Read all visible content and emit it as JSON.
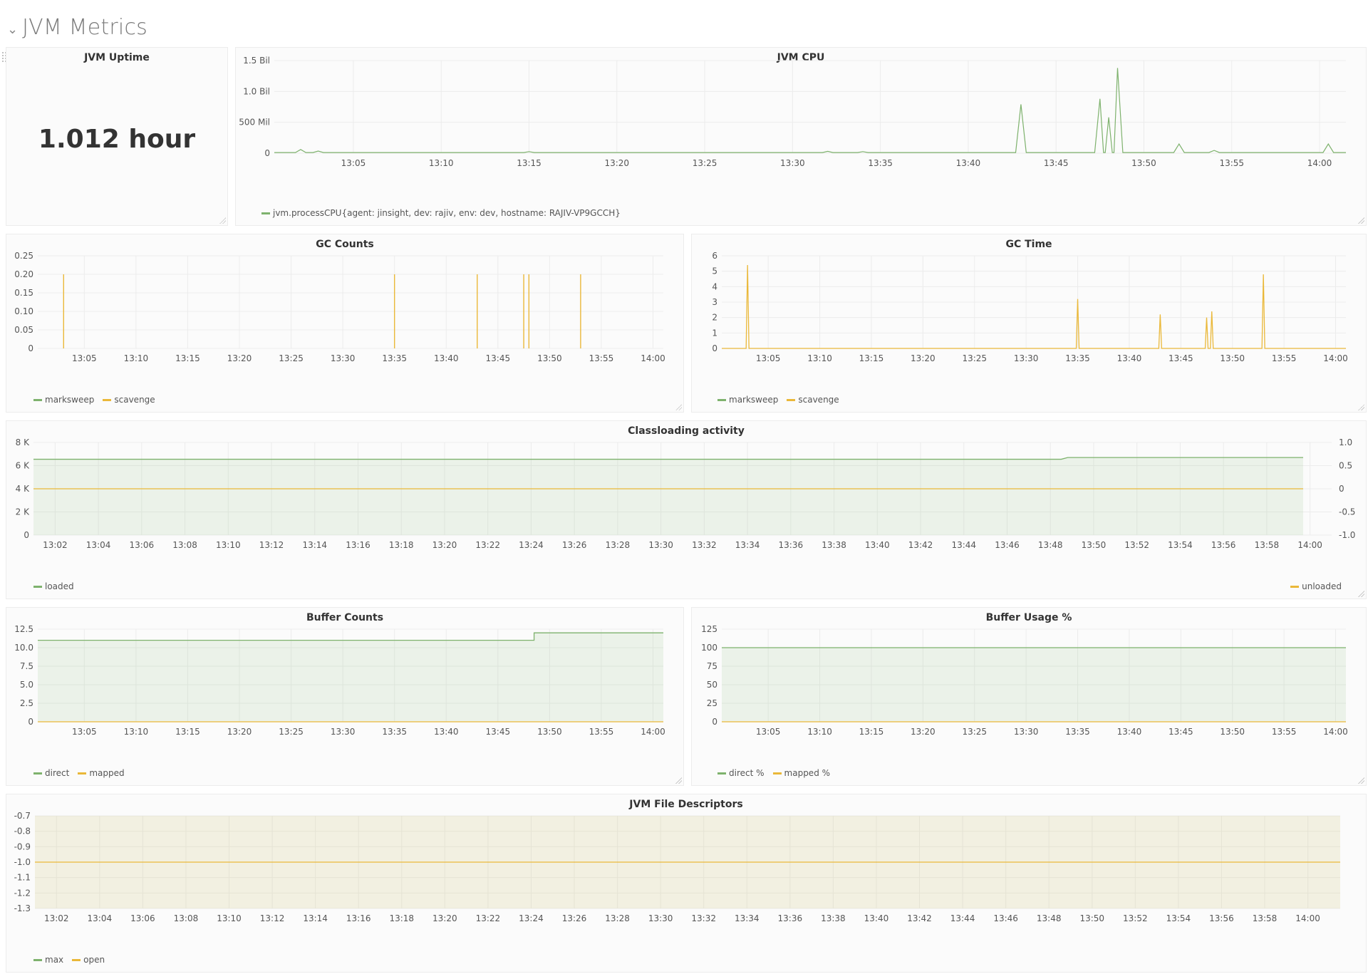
{
  "row": {
    "title": "JVM Metrics",
    "collapse_icon": "chevron-down-icon"
  },
  "colors": {
    "green": "#7eb26d",
    "yellow": "#eab839",
    "grid": "#ececec",
    "fill_green": "rgba(126,178,109,0.12)",
    "fill_yellow": "rgba(234,184,57,0.12)"
  },
  "panels": {
    "uptime": {
      "title": "JVM Uptime",
      "value": "1.012 hour"
    },
    "cpu": {
      "title": "JVM CPU",
      "legend": [
        {
          "name": "jvm.processCPU{agent: jinsight, dev: rajiv, env: dev, hostname: RAJIV-VP9GCCH}",
          "color": "#7eb26d"
        }
      ]
    },
    "gc_counts": {
      "title": "GC Counts",
      "legend": [
        {
          "name": "marksweep",
          "color": "#7eb26d"
        },
        {
          "name": "scavenge",
          "color": "#eab839"
        }
      ]
    },
    "gc_time": {
      "title": "GC Time",
      "legend": [
        {
          "name": "marksweep",
          "color": "#7eb26d"
        },
        {
          "name": "scavenge",
          "color": "#eab839"
        }
      ]
    },
    "classloading": {
      "title": "Classloading activity",
      "legend_left": [
        {
          "name": "loaded",
          "color": "#7eb26d"
        }
      ],
      "legend_right": [
        {
          "name": "unloaded",
          "color": "#eab839"
        }
      ]
    },
    "buffer_counts": {
      "title": "Buffer Counts",
      "legend": [
        {
          "name": "direct",
          "color": "#7eb26d"
        },
        {
          "name": "mapped",
          "color": "#eab839"
        }
      ]
    },
    "buffer_usage": {
      "title": "Buffer Usage %",
      "legend": [
        {
          "name": "direct %",
          "color": "#7eb26d"
        },
        {
          "name": "mapped %",
          "color": "#eab839"
        }
      ]
    },
    "file_desc": {
      "title": "JVM File Descriptors",
      "legend": [
        {
          "name": "max",
          "color": "#7eb26d"
        },
        {
          "name": "open",
          "color": "#eab839"
        }
      ]
    }
  },
  "chart_data": [
    {
      "id": "cpu",
      "type": "line",
      "x_ticks": [
        "13:05",
        "13:10",
        "13:15",
        "13:20",
        "13:25",
        "13:30",
        "13:35",
        "13:40",
        "13:45",
        "13:50",
        "13:55",
        "14:00"
      ],
      "y_ticks": [
        "1.5 Bil",
        "1.0 Bil",
        "500 Mil",
        "0"
      ],
      "ylim": [
        0,
        1500000000
      ],
      "series": [
        {
          "name": "jvm.processCPU{agent: jinsight, dev: rajiv, env: dev, hostname: RAJIV-VP9GCCH}",
          "baseline": 10000000,
          "spikes": [
            [
              "13:02",
              60000000
            ],
            [
              "13:03",
              35000000
            ],
            [
              "13:15",
              25000000
            ],
            [
              "13:32",
              30000000
            ],
            [
              "13:34",
              25000000
            ],
            [
              "13:43",
              790000000
            ],
            [
              "13:47.5",
              880000000
            ],
            [
              "13:48",
              580000000
            ],
            [
              "13:48.5",
              1380000000
            ],
            [
              "13:52",
              150000000
            ],
            [
              "13:54",
              45000000
            ],
            [
              "14:00.5",
              150000000
            ]
          ]
        }
      ]
    },
    {
      "id": "gc_counts",
      "type": "bar",
      "x_ticks": [
        "13:05",
        "13:10",
        "13:15",
        "13:20",
        "13:25",
        "13:30",
        "13:35",
        "13:40",
        "13:45",
        "13:50",
        "13:55",
        "14:00"
      ],
      "y_ticks": [
        "0.25",
        "0.20",
        "0.15",
        "0.10",
        "0.05",
        "0"
      ],
      "ylim": [
        0,
        0.25
      ],
      "series": [
        {
          "name": "scavenge",
          "events": [
            [
              "13:03",
              0.2
            ],
            [
              "13:35",
              0.2
            ],
            [
              "13:43",
              0.2
            ],
            [
              "13:47.5",
              0.2
            ],
            [
              "13:48",
              0.2
            ],
            [
              "13:53",
              0.2
            ]
          ]
        }
      ]
    },
    {
      "id": "gc_time",
      "type": "line",
      "x_ticks": [
        "13:05",
        "13:10",
        "13:15",
        "13:20",
        "13:25",
        "13:30",
        "13:35",
        "13:40",
        "13:45",
        "13:50",
        "13:55",
        "14:00"
      ],
      "y_ticks": [
        "6",
        "5",
        "4",
        "3",
        "2",
        "1",
        "0"
      ],
      "ylim": [
        0,
        6
      ],
      "series": [
        {
          "name": "scavenge",
          "spikes": [
            [
              "13:03",
              5.4
            ],
            [
              "13:35",
              3.2
            ],
            [
              "13:43",
              2.2
            ],
            [
              "13:47.5",
              2.0
            ],
            [
              "13:48",
              2.4
            ],
            [
              "13:53",
              4.8
            ]
          ]
        }
      ]
    },
    {
      "id": "classloading",
      "type": "area",
      "x_ticks": [
        "13:02",
        "13:04",
        "13:06",
        "13:08",
        "13:10",
        "13:12",
        "13:14",
        "13:16",
        "13:18",
        "13:20",
        "13:22",
        "13:24",
        "13:26",
        "13:28",
        "13:30",
        "13:32",
        "13:34",
        "13:36",
        "13:38",
        "13:40",
        "13:42",
        "13:44",
        "13:46",
        "13:48",
        "13:50",
        "13:52",
        "13:54",
        "13:56",
        "13:58",
        "14:00"
      ],
      "y_ticks_left": [
        "8 K",
        "6 K",
        "4 K",
        "2 K",
        "0"
      ],
      "y_ticks_right": [
        "1.0",
        "0.5",
        "0",
        "-0.5",
        "-1.0"
      ],
      "ylim": [
        0,
        8000
      ],
      "series": [
        {
          "name": "loaded",
          "steps": [
            [
              "13:01",
              6550
            ],
            [
              "13:48.5",
              6550
            ],
            [
              "13:48.8",
              6700
            ],
            [
              "14:01",
              6700
            ]
          ]
        },
        {
          "name": "unloaded",
          "value": 0
        }
      ]
    },
    {
      "id": "buffer_counts",
      "type": "area",
      "x_ticks": [
        "13:05",
        "13:10",
        "13:15",
        "13:20",
        "13:25",
        "13:30",
        "13:35",
        "13:40",
        "13:45",
        "13:50",
        "13:55",
        "14:00"
      ],
      "y_ticks": [
        "12.5",
        "10.0",
        "7.5",
        "5.0",
        "2.5",
        "0"
      ],
      "ylim": [
        0,
        12.5
      ],
      "series": [
        {
          "name": "direct",
          "steps": [
            [
              "13:00.5",
              11
            ],
            [
              "13:48.5",
              11
            ],
            [
              "13:48.5",
              12
            ],
            [
              "14:01",
              12
            ]
          ]
        },
        {
          "name": "mapped",
          "value": 0
        }
      ]
    },
    {
      "id": "buffer_usage",
      "type": "area",
      "x_ticks": [
        "13:05",
        "13:10",
        "13:15",
        "13:20",
        "13:25",
        "13:30",
        "13:35",
        "13:40",
        "13:45",
        "13:50",
        "13:55",
        "14:00"
      ],
      "y_ticks": [
        "125",
        "100",
        "75",
        "50",
        "25",
        "0"
      ],
      "ylim": [
        0,
        125
      ],
      "series": [
        {
          "name": "direct %",
          "value": 100
        },
        {
          "name": "mapped %",
          "value": 0
        }
      ]
    },
    {
      "id": "file_desc",
      "type": "area",
      "x_ticks": [
        "13:02",
        "13:04",
        "13:06",
        "13:08",
        "13:10",
        "13:12",
        "13:14",
        "13:16",
        "13:18",
        "13:20",
        "13:22",
        "13:24",
        "13:26",
        "13:28",
        "13:30",
        "13:32",
        "13:34",
        "13:36",
        "13:38",
        "13:40",
        "13:42",
        "13:44",
        "13:46",
        "13:48",
        "13:50",
        "13:52",
        "13:54",
        "13:56",
        "13:58",
        "14:00"
      ],
      "y_ticks": [
        "-0.7",
        "-0.8",
        "-0.9",
        "-1.0",
        "-1.1",
        "-1.2",
        "-1.3"
      ],
      "ylim": [
        -1.3,
        -0.7
      ],
      "series": [
        {
          "name": "max",
          "value": -0.7
        },
        {
          "name": "open",
          "value": -1.0
        }
      ]
    }
  ]
}
